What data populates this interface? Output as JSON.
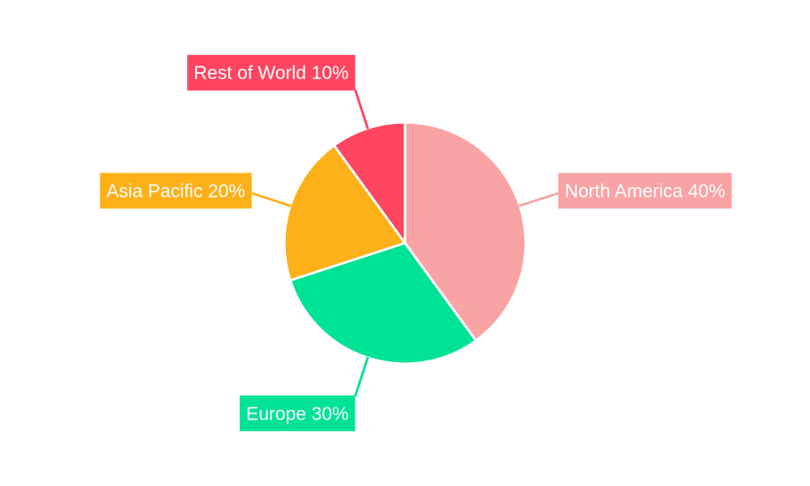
{
  "chart_data": {
    "type": "pie",
    "categories": [
      "North America",
      "Europe",
      "Asia Pacific",
      "Rest of World"
    ],
    "values": [
      40,
      30,
      20,
      10
    ],
    "labels": [
      "North America 40%",
      "Europe 30%",
      "Asia Pacific 20%",
      "Rest of World 10%"
    ],
    "colors": [
      "#f9a3a4",
      "#00e396",
      "#feb019",
      "#ff4560"
    ],
    "start_angle": "top, clockwise",
    "legend": "none"
  }
}
